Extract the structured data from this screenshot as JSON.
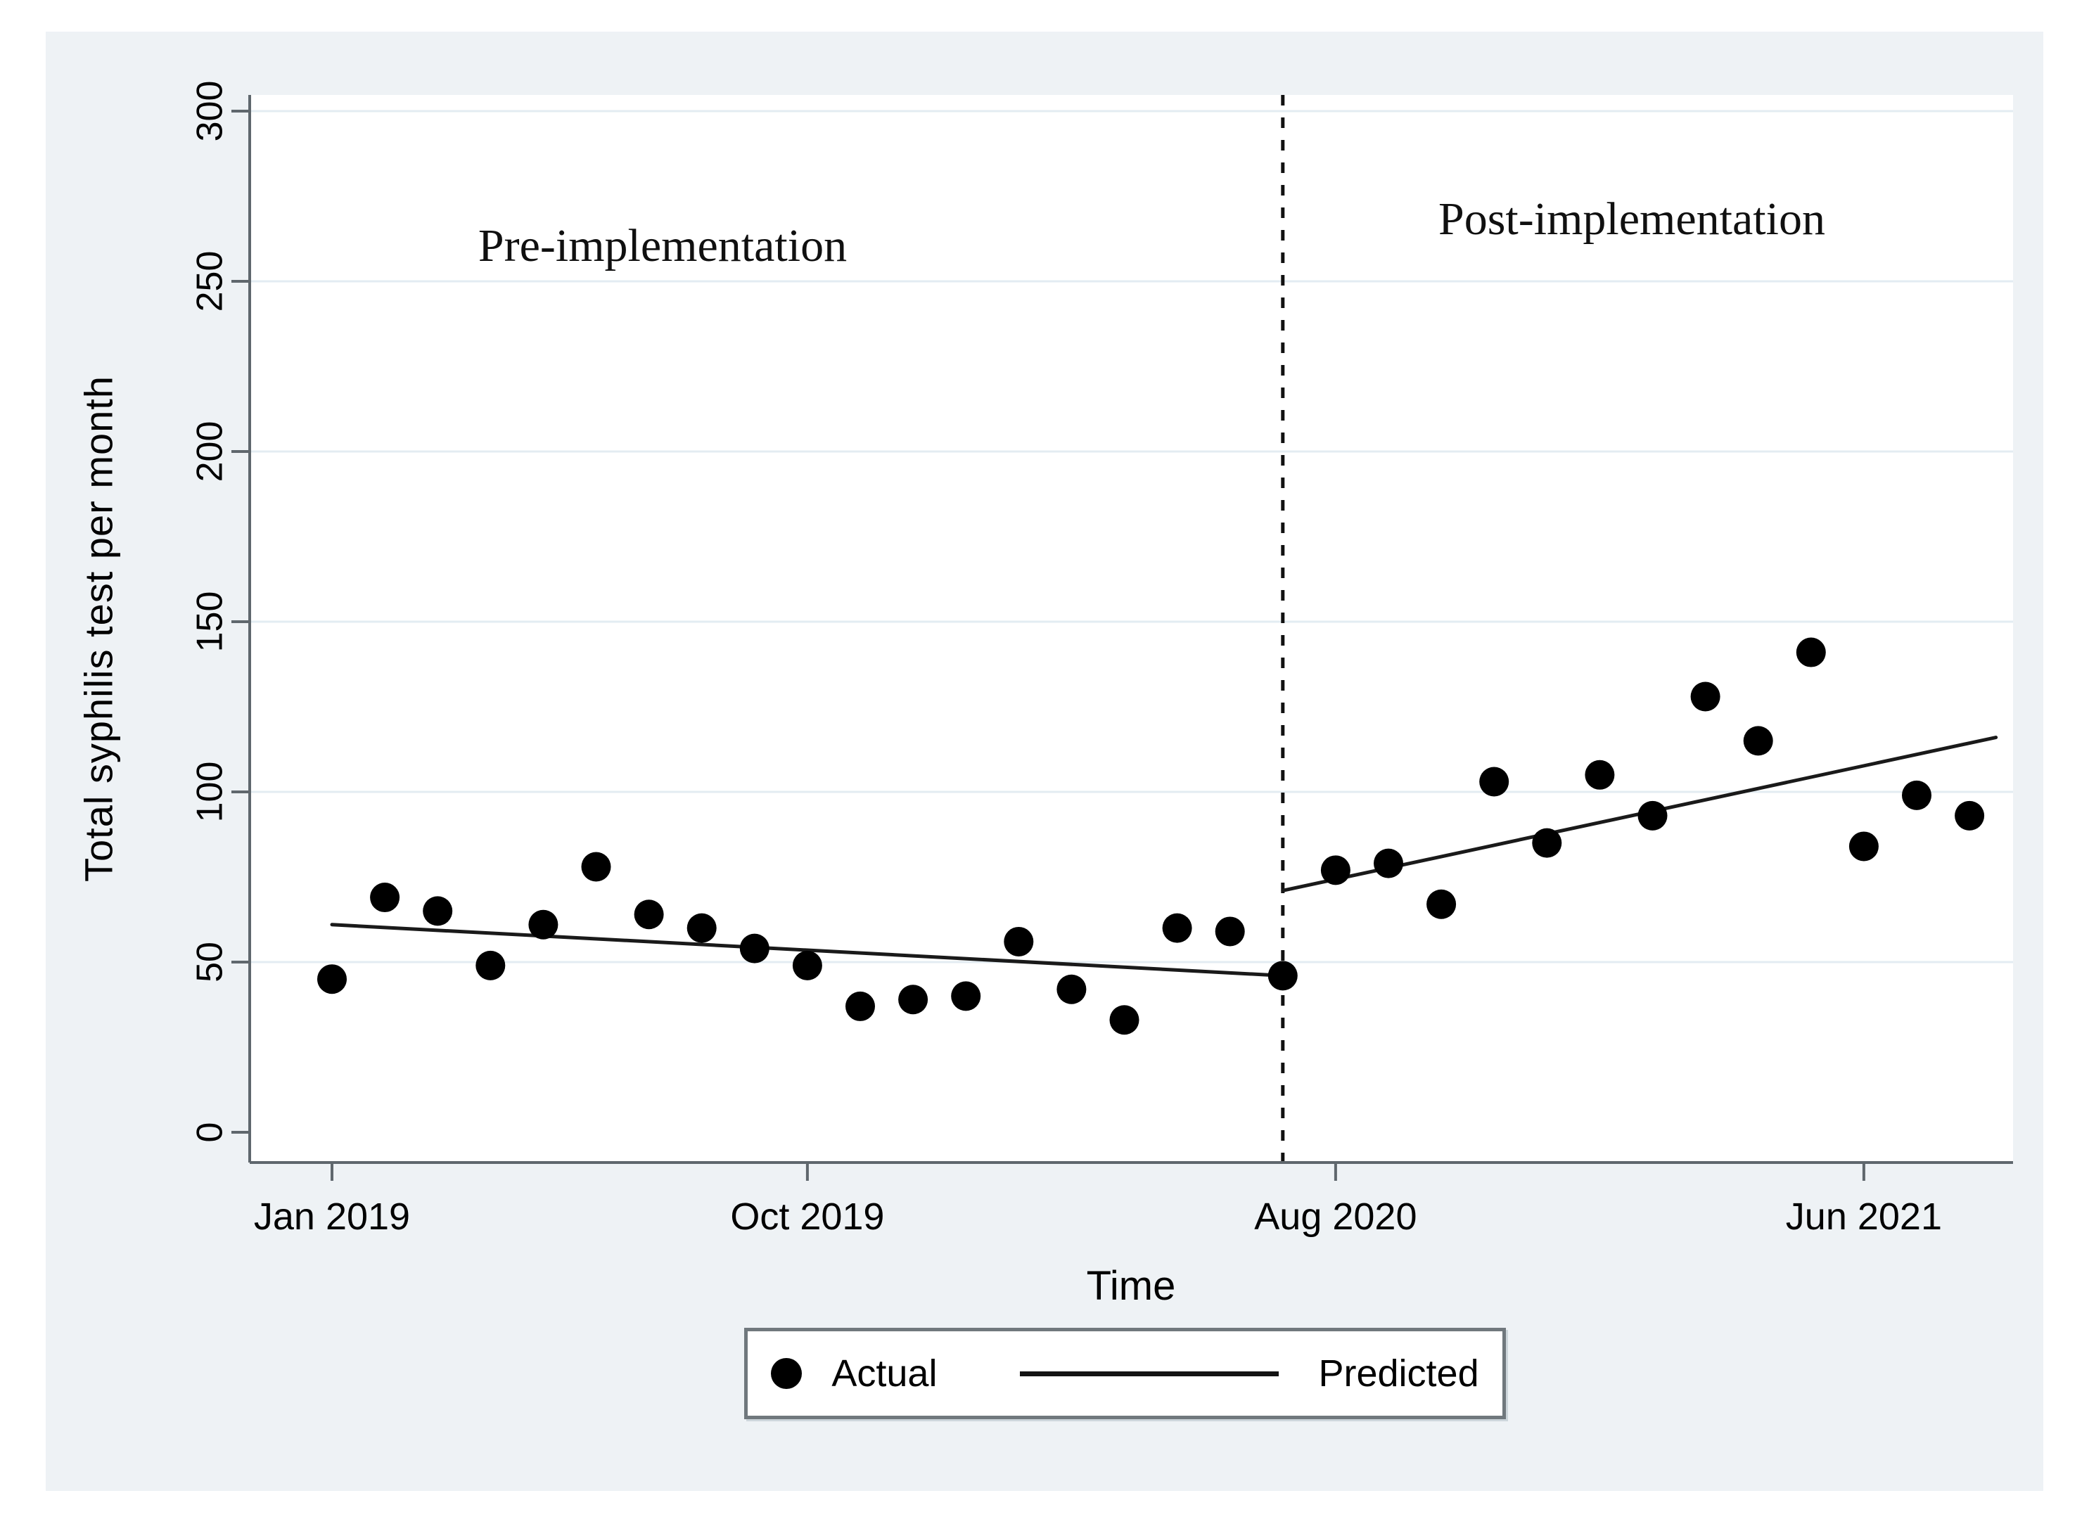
{
  "chart_data": {
    "type": "scatter",
    "title": "",
    "ylabel": "Total syphilis test per month",
    "xlabel": "Time",
    "ylim": [
      0,
      300
    ],
    "y_ticks": [
      0,
      50,
      100,
      150,
      200,
      250,
      300
    ],
    "x_tick_labels": [
      "Jan 2019",
      "Oct 2019",
      "Aug 2020",
      "Jun 2021"
    ],
    "x_tick_months": [
      0,
      9,
      19,
      29
    ],
    "time_axis_start": "Jan 2019",
    "time_axis_end": "Aug 2021",
    "grid": "horizontal",
    "intervention_line": {
      "month": 18,
      "style": "dashed-vertical"
    },
    "annotations": [
      {
        "text": "Pre-implementation",
        "month": 6.2,
        "value": 262
      },
      {
        "text": "Post-implementation",
        "month": 24.6,
        "value": 268
      }
    ],
    "series": [
      {
        "name": "Actual",
        "kind": "scatter",
        "months": [
          0,
          1,
          2,
          3,
          4,
          5,
          6,
          7,
          8,
          9,
          10,
          11,
          12,
          13,
          14,
          15,
          16,
          17,
          18,
          19,
          20,
          21,
          22,
          23,
          24,
          25,
          26,
          27,
          28,
          29,
          30,
          31
        ],
        "values": [
          45,
          69,
          65,
          49,
          61,
          78,
          64,
          60,
          54,
          49,
          37,
          39,
          40,
          56,
          42,
          33,
          60,
          59,
          46,
          77,
          79,
          67,
          103,
          85,
          105,
          93,
          128,
          115,
          141,
          84,
          99,
          93
        ]
      },
      {
        "name": "Predicted",
        "kind": "line",
        "segments": [
          {
            "x1": 0,
            "y1": 61,
            "x2": 18,
            "y2": 46
          },
          {
            "x1": 18,
            "y1": 71,
            "x2": 31.5,
            "y2": 116
          }
        ]
      }
    ],
    "legend": {
      "position": "bottom-center",
      "entries": [
        {
          "label": "Actual",
          "marker": "filled-circle"
        },
        {
          "label": "Predicted",
          "marker": "solid-line"
        }
      ]
    },
    "colors": {
      "marker": "#000000",
      "predicted_line": "#1a1a1a",
      "dashed_line": "#111111",
      "grid": "#e3ecf2",
      "axis": "#5f676d",
      "figure_bg": "#eef2f5",
      "plot_bg": "#ffffff",
      "text": "#000000"
    }
  }
}
